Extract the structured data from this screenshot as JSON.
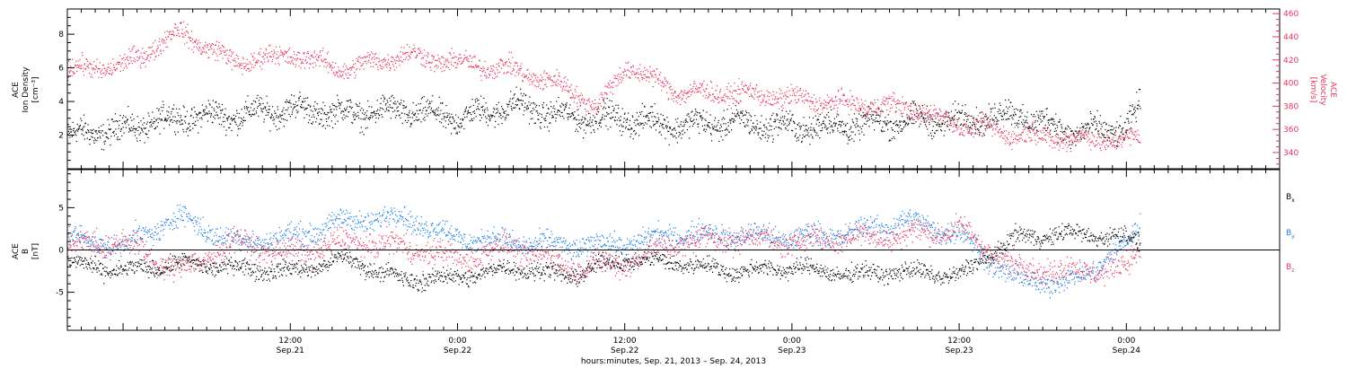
{
  "colors": {
    "black": "#000000",
    "red": "#e8335f",
    "blue": "#1a7fe6"
  },
  "xaxis": {
    "range": [
      "2013-09-20T20:00",
      "2013-09-24T11:00"
    ],
    "ticks": [
      {
        "t": "2013-09-21T12:00",
        "top": "12:00",
        "bottom": "Sep.21"
      },
      {
        "t": "2013-09-22T00:00",
        "top": "0:00",
        "bottom": "Sep.22"
      },
      {
        "t": "2013-09-22T12:00",
        "top": "12:00",
        "bottom": "Sep.22"
      },
      {
        "t": "2013-09-23T00:00",
        "top": "0:00",
        "bottom": "Sep.23"
      },
      {
        "t": "2013-09-23T12:00",
        "top": "12:00",
        "bottom": "Sep.23"
      },
      {
        "t": "2013-09-24T00:00",
        "top": "0:00",
        "bottom": "Sep.24"
      }
    ],
    "label": "hours:minutes, Sep. 21, 2013 – Sep. 24, 2013"
  },
  "chart_data": [
    {
      "type": "scatter",
      "panel": "top",
      "ylabel": [
        "ACE",
        "Ion Density",
        "[cm⁻³]"
      ],
      "ylim": [
        0,
        9.5
      ],
      "yticks": [
        2,
        4,
        6,
        8
      ],
      "ylabel_right": [
        "ACE",
        "Velocity",
        "[km/s]"
      ],
      "ylim_right": [
        326,
        464
      ],
      "yticks_right": [
        340,
        360,
        380,
        400,
        420,
        440,
        460
      ],
      "series": [
        {
          "name": "",
          "color": "black",
          "axis": "left",
          "points": [
            [
              "2013-09-20T20:00",
              2.0
            ],
            [
              "2013-09-21T00:00",
              2.4
            ],
            [
              "2013-09-21T04:00",
              3.1
            ],
            [
              "2013-09-21T08:00",
              3.2
            ],
            [
              "2013-09-21T12:00",
              3.6
            ],
            [
              "2013-09-21T16:00",
              3.3
            ],
            [
              "2013-09-21T20:00",
              3.5
            ],
            [
              "2013-09-22T00:00",
              3.0
            ],
            [
              "2013-09-22T04:00",
              3.8
            ],
            [
              "2013-09-22T08:00",
              3.1
            ],
            [
              "2013-09-22T12:00",
              3.0
            ],
            [
              "2013-09-22T16:00",
              2.6
            ],
            [
              "2013-09-22T20:00",
              2.8
            ],
            [
              "2013-09-23T00:00",
              2.5
            ],
            [
              "2013-09-23T04:00",
              2.6
            ],
            [
              "2013-09-23T08:00",
              2.9
            ],
            [
              "2013-09-23T12:00",
              2.9
            ],
            [
              "2013-09-23T16:00",
              3.3
            ],
            [
              "2013-09-23T20:00",
              2.2
            ],
            [
              "2013-09-24T00:00",
              2.4
            ],
            [
              "2013-09-24T01:00",
              3.8
            ]
          ]
        },
        {
          "name": "",
          "color": "red",
          "axis": "right",
          "points": [
            [
              "2013-09-20T20:00",
              412
            ],
            [
              "2013-09-21T00:00",
              415
            ],
            [
              "2013-09-21T04:00",
              445
            ],
            [
              "2013-09-21T08:00",
              418
            ],
            [
              "2013-09-21T12:00",
              425
            ],
            [
              "2013-09-21T16:00",
              412
            ],
            [
              "2013-09-21T20:00",
              425
            ],
            [
              "2013-09-22T00:00",
              418
            ],
            [
              "2013-09-22T04:00",
              412
            ],
            [
              "2013-09-22T08:00",
              396
            ],
            [
              "2013-09-22T10:00",
              378
            ],
            [
              "2013-09-22T12:00",
              415
            ],
            [
              "2013-09-22T16:00",
              392
            ],
            [
              "2013-09-22T20:00",
              392
            ],
            [
              "2013-09-23T00:00",
              387
            ],
            [
              "2013-09-23T04:00",
              382
            ],
            [
              "2013-09-23T08:00",
              380
            ],
            [
              "2013-09-23T12:00",
              365
            ],
            [
              "2013-09-23T16:00",
              356
            ],
            [
              "2013-09-23T20:00",
              352
            ],
            [
              "2013-09-24T00:00",
              351
            ],
            [
              "2013-09-24T01:00",
              352
            ]
          ]
        }
      ]
    },
    {
      "type": "scatter",
      "panel": "bottom",
      "ylabel": [
        "ACE",
        "B",
        "[nT]"
      ],
      "ylim": [
        -9.5,
        9.5
      ],
      "yticks": [
        -5,
        0,
        5
      ],
      "zero_line": true,
      "series": [
        {
          "name": "Bx",
          "color": "black",
          "points": [
            [
              "2013-09-20T20:00",
              -1.5
            ],
            [
              "2013-09-21T00:00",
              -2.5
            ],
            [
              "2013-09-21T04:00",
              -1.5
            ],
            [
              "2013-09-21T08:00",
              -2.0
            ],
            [
              "2013-09-21T12:00",
              -2.5
            ],
            [
              "2013-09-21T16:00",
              -1.0
            ],
            [
              "2013-09-21T20:00",
              -3.5
            ],
            [
              "2013-09-22T00:00",
              -3.2
            ],
            [
              "2013-09-22T04:00",
              -2.0
            ],
            [
              "2013-09-22T08:00",
              -3.0
            ],
            [
              "2013-09-22T12:00",
              -1.0
            ],
            [
              "2013-09-22T16:00",
              -1.5
            ],
            [
              "2013-09-22T20:00",
              -2.5
            ],
            [
              "2013-09-23T00:00",
              -2.0
            ],
            [
              "2013-09-23T04:00",
              -2.8
            ],
            [
              "2013-09-23T08:00",
              -2.5
            ],
            [
              "2013-09-23T12:00",
              -3.0
            ],
            [
              "2013-09-23T16:00",
              1.5
            ],
            [
              "2013-09-23T20:00",
              2.0
            ],
            [
              "2013-09-24T00:00",
              1.5
            ],
            [
              "2013-09-24T01:00",
              1.0
            ]
          ]
        },
        {
          "name": "By",
          "color": "blue",
          "points": [
            [
              "2013-09-20T20:00",
              1.5
            ],
            [
              "2013-09-21T00:00",
              0.5
            ],
            [
              "2013-09-21T04:00",
              4.0
            ],
            [
              "2013-09-21T08:00",
              1.0
            ],
            [
              "2013-09-21T12:00",
              1.5
            ],
            [
              "2013-09-21T16:00",
              3.5
            ],
            [
              "2013-09-21T20:00",
              4.0
            ],
            [
              "2013-09-22T00:00",
              1.5
            ],
            [
              "2013-09-22T04:00",
              1.0
            ],
            [
              "2013-09-22T08:00",
              0.5
            ],
            [
              "2013-09-22T12:00",
              0.8
            ],
            [
              "2013-09-22T16:00",
              2.0
            ],
            [
              "2013-09-22T20:00",
              1.8
            ],
            [
              "2013-09-23T00:00",
              1.5
            ],
            [
              "2013-09-23T04:00",
              2.0
            ],
            [
              "2013-09-23T08:00",
              3.5
            ],
            [
              "2013-09-23T12:00",
              2.0
            ],
            [
              "2013-09-23T16:00",
              -3.5
            ],
            [
              "2013-09-23T20:00",
              -3.8
            ],
            [
              "2013-09-24T00:00",
              0.5
            ],
            [
              "2013-09-24T01:00",
              3.5
            ]
          ]
        },
        {
          "name": "Bz",
          "color": "red",
          "points": [
            [
              "2013-09-20T20:00",
              0.5
            ],
            [
              "2013-09-21T00:00",
              1.0
            ],
            [
              "2013-09-21T04:00",
              -2.5
            ],
            [
              "2013-09-21T08:00",
              1.0
            ],
            [
              "2013-09-21T12:00",
              -0.5
            ],
            [
              "2013-09-21T16:00",
              1.0
            ],
            [
              "2013-09-21T20:00",
              0.5
            ],
            [
              "2013-09-22T00:00",
              -1.0
            ],
            [
              "2013-09-22T04:00",
              0.5
            ],
            [
              "2013-09-22T08:00",
              -2.0
            ],
            [
              "2013-09-22T12:00",
              -1.5
            ],
            [
              "2013-09-22T16:00",
              1.0
            ],
            [
              "2013-09-22T20:00",
              1.5
            ],
            [
              "2013-09-23T00:00",
              1.0
            ],
            [
              "2013-09-23T04:00",
              1.5
            ],
            [
              "2013-09-23T08:00",
              1.8
            ],
            [
              "2013-09-23T12:00",
              2.5
            ],
            [
              "2013-09-23T16:00",
              -2.0
            ],
            [
              "2013-09-23T20:00",
              -2.5
            ],
            [
              "2013-09-24T00:00",
              -2.0
            ],
            [
              "2013-09-24T01:00",
              0.5
            ]
          ]
        }
      ],
      "legend": [
        {
          "label": "B",
          "sub": "x",
          "color": "black"
        },
        {
          "label": "B",
          "sub": "y",
          "color": "blue"
        },
        {
          "label": "B",
          "sub": "z",
          "color": "red"
        }
      ]
    }
  ]
}
